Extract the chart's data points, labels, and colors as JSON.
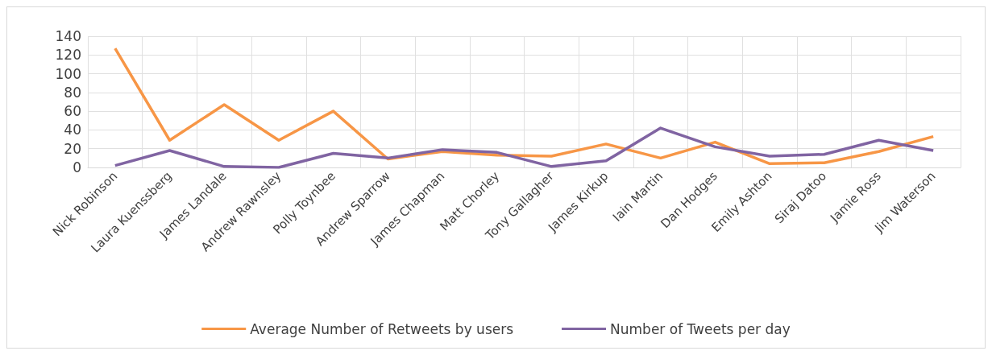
{
  "chart_data": {
    "type": "line",
    "categories": [
      "Nick Robinson",
      "Laura Kuenssberg",
      "James Landale",
      "Andrew Rawnsley",
      "Polly Toynbee",
      "Andrew Sparrow",
      "James Chapman",
      "Matt Chorley",
      "Tony Gallagher",
      "James Kirkup",
      "Iain Martin",
      "Dan Hodges",
      "Emily Ashton",
      "Siraj Datoo",
      "Jamie Ross",
      "Jim Waterson"
    ],
    "series": [
      {
        "name": "Average Number of Retweets by users",
        "color": "#f79646",
        "values": [
          127,
          29,
          67,
          29,
          60,
          9,
          17,
          13,
          12,
          25,
          10,
          27,
          4,
          5,
          17,
          33
        ]
      },
      {
        "name": "Number of Tweets per day",
        "color": "#8064a2",
        "values": [
          2,
          18,
          1,
          0,
          15,
          10,
          19,
          16,
          1,
          7,
          42,
          22,
          12,
          14,
          29,
          18
        ]
      }
    ],
    "ylim": [
      0,
      140
    ],
    "yticks": [
      0,
      20,
      40,
      60,
      80,
      100,
      120,
      140
    ],
    "grid": true,
    "legend": "bottom",
    "marker": "none",
    "line_style": "solid"
  }
}
